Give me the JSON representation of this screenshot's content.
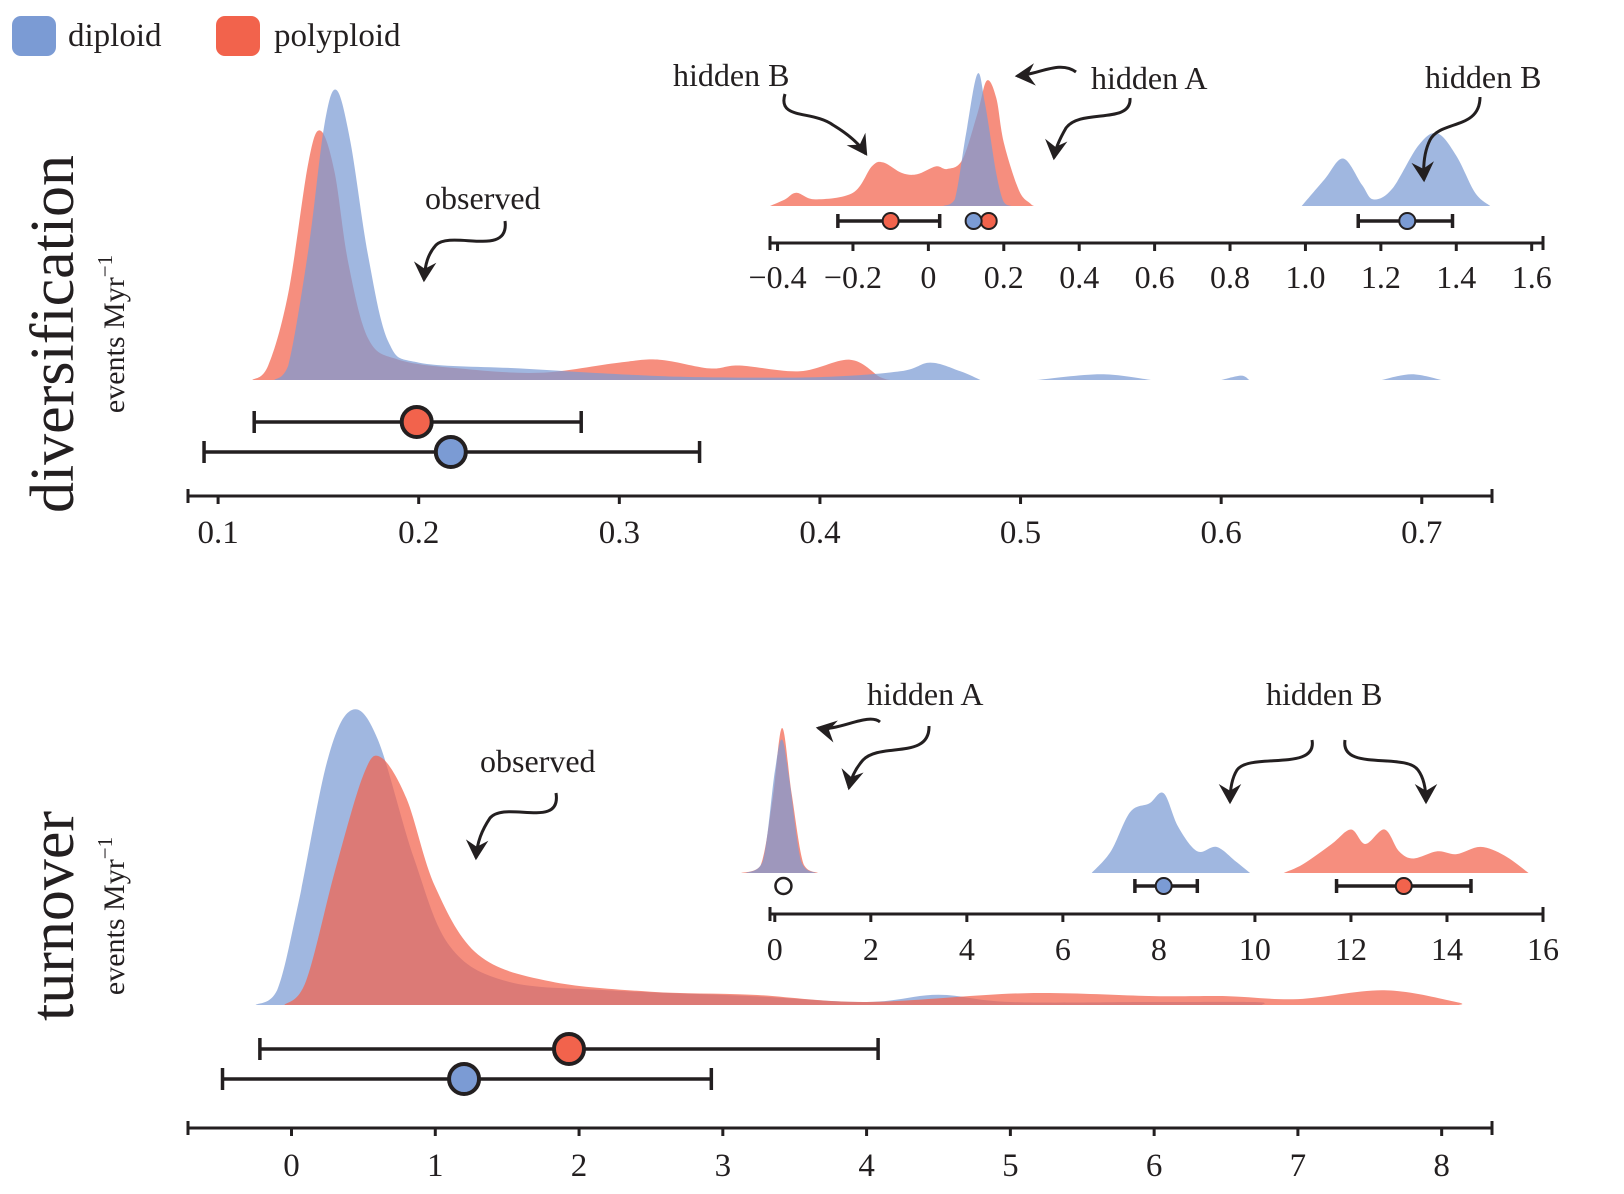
{
  "legend": {
    "items": [
      {
        "label": "diploid",
        "color": "#7b9bd4"
      },
      {
        "label": "polyploid",
        "color": "#f2634c"
      }
    ]
  },
  "colors": {
    "diploid": "#7b9bd4",
    "polyploid": "#f2634c",
    "overlap": "#9a8fae",
    "ink": "#231f20"
  },
  "panels": {
    "diversification": {
      "title": "diversification",
      "unit": "events Myr",
      "unit_sup": "−1",
      "observed_label": "observed"
    },
    "turnover": {
      "title": "turnover",
      "unit": "events Myr",
      "unit_sup": "−1",
      "observed_label": "observed"
    }
  },
  "annotations": {
    "div_hidden_b_left": "hidden B",
    "div_hidden_a": "hidden A",
    "div_hidden_b_right": "hidden B",
    "turn_hidden_a": "hidden A",
    "turn_hidden_b": "hidden B"
  },
  "chart_data": [
    {
      "type": "area",
      "name": "diversification-observed",
      "xlim": [
        0.085,
        0.735
      ],
      "xticks": [
        0.1,
        0.2,
        0.3,
        0.4,
        0.5,
        0.6,
        0.7
      ],
      "xtick_labels": [
        "0.1",
        "0.2",
        "0.3",
        "0.4",
        "0.5",
        "0.6",
        "0.7"
      ],
      "series": [
        {
          "name": "polyploid",
          "density": [
            [
              0.117,
              0
            ],
            [
              0.125,
              0.05
            ],
            [
              0.135,
              0.3
            ],
            [
              0.145,
              0.75
            ],
            [
              0.151,
              0.86
            ],
            [
              0.158,
              0.72
            ],
            [
              0.165,
              0.4
            ],
            [
              0.175,
              0.14
            ],
            [
              0.19,
              0.07
            ],
            [
              0.22,
              0.04
            ],
            [
              0.26,
              0.025
            ],
            [
              0.3,
              0.06
            ],
            [
              0.32,
              0.07
            ],
            [
              0.345,
              0.04
            ],
            [
              0.36,
              0.05
            ],
            [
              0.39,
              0.03
            ],
            [
              0.415,
              0.07
            ],
            [
              0.43,
              0.01
            ],
            [
              0.435,
              0
            ]
          ],
          "mean": 0.199,
          "ci": [
            0.118,
            0.281
          ]
        },
        {
          "name": "diploid",
          "density": [
            [
              0.128,
              0
            ],
            [
              0.135,
              0.05
            ],
            [
              0.145,
              0.45
            ],
            [
              0.153,
              0.88
            ],
            [
              0.159,
              1.0
            ],
            [
              0.166,
              0.82
            ],
            [
              0.175,
              0.42
            ],
            [
              0.185,
              0.13
            ],
            [
              0.2,
              0.06
            ],
            [
              0.25,
              0.04
            ],
            [
              0.3,
              0.02
            ],
            [
              0.34,
              0.01
            ],
            [
              0.4,
              0.01
            ],
            [
              0.44,
              0.03
            ],
            [
              0.455,
              0.06
            ],
            [
              0.47,
              0.03
            ],
            [
              0.48,
              0
            ],
            [
              0.508,
              0
            ],
            [
              0.54,
              0.02
            ],
            [
              0.565,
              0
            ],
            [
              0.6,
              0
            ],
            [
              0.61,
              0.015
            ],
            [
              0.614,
              0
            ],
            [
              0.68,
              0
            ],
            [
              0.695,
              0.02
            ],
            [
              0.71,
              0
            ]
          ],
          "mean": 0.216,
          "ci": [
            0.093,
            0.34
          ]
        }
      ]
    },
    {
      "type": "area",
      "name": "diversification-hidden",
      "xlim": [
        -0.42,
        1.63
      ],
      "xticks": [
        -0.4,
        -0.2,
        0,
        0.2,
        0.4,
        0.6,
        0.8,
        1.0,
        1.2,
        1.4,
        1.6
      ],
      "xtick_labels": [
        "−0.4",
        "−0.2",
        "0",
        "0.2",
        "0.4",
        "0.6",
        "0.8",
        "1.0",
        "1.2",
        "1.4",
        "1.6"
      ],
      "series": [
        {
          "name": "polyploid",
          "density": [
            [
              -0.42,
              0
            ],
            [
              -0.38,
              0.05
            ],
            [
              -0.35,
              0.1
            ],
            [
              -0.3,
              0.05
            ],
            [
              -0.2,
              0.1
            ],
            [
              -0.15,
              0.3
            ],
            [
              -0.12,
              0.33
            ],
            [
              -0.07,
              0.25
            ],
            [
              -0.03,
              0.24
            ],
            [
              0.02,
              0.3
            ],
            [
              0.05,
              0.28
            ],
            [
              0.09,
              0.35
            ],
            [
              0.13,
              0.7
            ],
            [
              0.155,
              0.95
            ],
            [
              0.18,
              0.82
            ],
            [
              0.2,
              0.48
            ],
            [
              0.24,
              0.12
            ],
            [
              0.27,
              0.02
            ],
            [
              0.28,
              0
            ]
          ],
          "mean_hidden_b": -0.1,
          "ci_hidden_b": [
            -0.24,
            0.03
          ],
          "mean_hidden_a": 0.16
        },
        {
          "name": "diploid",
          "density": [
            [
              0.04,
              0
            ],
            [
              0.07,
              0.05
            ],
            [
              0.1,
              0.55
            ],
            [
              0.13,
              1.0
            ],
            [
              0.15,
              0.78
            ],
            [
              0.18,
              0.25
            ],
            [
              0.2,
              0.03
            ],
            [
              0.22,
              0
            ],
            [
              0.99,
              0
            ],
            [
              1.05,
              0.2
            ],
            [
              1.1,
              0.36
            ],
            [
              1.15,
              0.16
            ],
            [
              1.18,
              0.05
            ],
            [
              1.23,
              0.13
            ],
            [
              1.3,
              0.46
            ],
            [
              1.35,
              0.55
            ],
            [
              1.4,
              0.38
            ],
            [
              1.45,
              0.1
            ],
            [
              1.49,
              0
            ]
          ],
          "mean_hidden_a": 0.12,
          "mean_hidden_b": 1.27,
          "ci_hidden_b": [
            1.14,
            1.39
          ]
        }
      ]
    },
    {
      "type": "area",
      "name": "turnover-observed",
      "xlim": [
        -0.72,
        8.35
      ],
      "xticks": [
        0,
        1,
        2,
        3,
        4,
        5,
        6,
        7,
        8
      ],
      "xtick_labels": [
        "0",
        "1",
        "2",
        "3",
        "4",
        "5",
        "6",
        "7",
        "8"
      ],
      "series": [
        {
          "name": "diploid",
          "density": [
            [
              -0.25,
              0
            ],
            [
              -0.1,
              0.05
            ],
            [
              0.05,
              0.35
            ],
            [
              0.25,
              0.83
            ],
            [
              0.42,
              1.0
            ],
            [
              0.6,
              0.9
            ],
            [
              0.85,
              0.5
            ],
            [
              1.1,
              0.2
            ],
            [
              1.5,
              0.08
            ],
            [
              2.2,
              0.05
            ],
            [
              3.2,
              0.03
            ],
            [
              4.0,
              0.01
            ],
            [
              4.5,
              0.035
            ],
            [
              5.0,
              0.01
            ],
            [
              6.0,
              0.01
            ],
            [
              6.7,
              0.01
            ],
            [
              6.75,
              0
            ]
          ],
          "mean": 1.2,
          "ci": [
            -0.48,
            2.92
          ]
        },
        {
          "name": "polyploid",
          "density": [
            [
              -0.05,
              0
            ],
            [
              0.1,
              0.08
            ],
            [
              0.3,
              0.45
            ],
            [
              0.5,
              0.78
            ],
            [
              0.62,
              0.84
            ],
            [
              0.8,
              0.7
            ],
            [
              1.0,
              0.4
            ],
            [
              1.3,
              0.17
            ],
            [
              1.8,
              0.08
            ],
            [
              2.5,
              0.045
            ],
            [
              3.2,
              0.035
            ],
            [
              4.0,
              0.01
            ],
            [
              5.1,
              0.04
            ],
            [
              6.0,
              0.03
            ],
            [
              6.5,
              0.03
            ],
            [
              7.0,
              0.02
            ],
            [
              7.6,
              0.05
            ],
            [
              8.1,
              0.01
            ],
            [
              8.12,
              0
            ]
          ],
          "mean": 1.93,
          "ci": [
            -0.22,
            4.08
          ]
        }
      ]
    },
    {
      "type": "area",
      "name": "turnover-hidden",
      "xlim": [
        -0.1,
        16.0
      ],
      "xticks": [
        0,
        2,
        4,
        6,
        8,
        10,
        12,
        14,
        16
      ],
      "xtick_labels": [
        "0",
        "2",
        "4",
        "6",
        "8",
        "10",
        "12",
        "14",
        "16"
      ],
      "series": [
        {
          "name": "polyploid",
          "density": [
            [
              -0.7,
              0
            ],
            [
              -0.3,
              0.05
            ],
            [
              -0.05,
              0.5
            ],
            [
              0.15,
              1.0
            ],
            [
              0.35,
              0.55
            ],
            [
              0.6,
              0.06
            ],
            [
              0.9,
              0
            ],
            [
              10.6,
              0
            ],
            [
              11.0,
              0.06
            ],
            [
              11.6,
              0.2
            ],
            [
              12.0,
              0.3
            ],
            [
              12.3,
              0.2
            ],
            [
              12.7,
              0.3
            ],
            [
              13.0,
              0.15
            ],
            [
              13.3,
              0.1
            ],
            [
              13.8,
              0.15
            ],
            [
              14.2,
              0.13
            ],
            [
              14.7,
              0.18
            ],
            [
              15.2,
              0.12
            ],
            [
              15.7,
              0
            ]
          ],
          "mean_hidden_a": 0.18,
          "mean_hidden_b": 13.1,
          "ci_hidden_b": [
            11.7,
            14.5
          ]
        },
        {
          "name": "diploid",
          "density": [
            [
              -0.6,
              0
            ],
            [
              -0.25,
              0.08
            ],
            [
              0.0,
              0.7
            ],
            [
              0.15,
              0.92
            ],
            [
              0.3,
              0.65
            ],
            [
              0.55,
              0.08
            ],
            [
              0.85,
              0
            ],
            [
              6.6,
              0
            ],
            [
              7.0,
              0.15
            ],
            [
              7.4,
              0.42
            ],
            [
              7.8,
              0.48
            ],
            [
              8.1,
              0.55
            ],
            [
              8.4,
              0.32
            ],
            [
              8.8,
              0.15
            ],
            [
              9.2,
              0.18
            ],
            [
              9.6,
              0.08
            ],
            [
              9.9,
              0
            ]
          ],
          "mean_hidden_a": 0.18,
          "mean_hidden_b": 8.1,
          "ci_hidden_b": [
            7.5,
            8.8
          ]
        }
      ]
    }
  ]
}
